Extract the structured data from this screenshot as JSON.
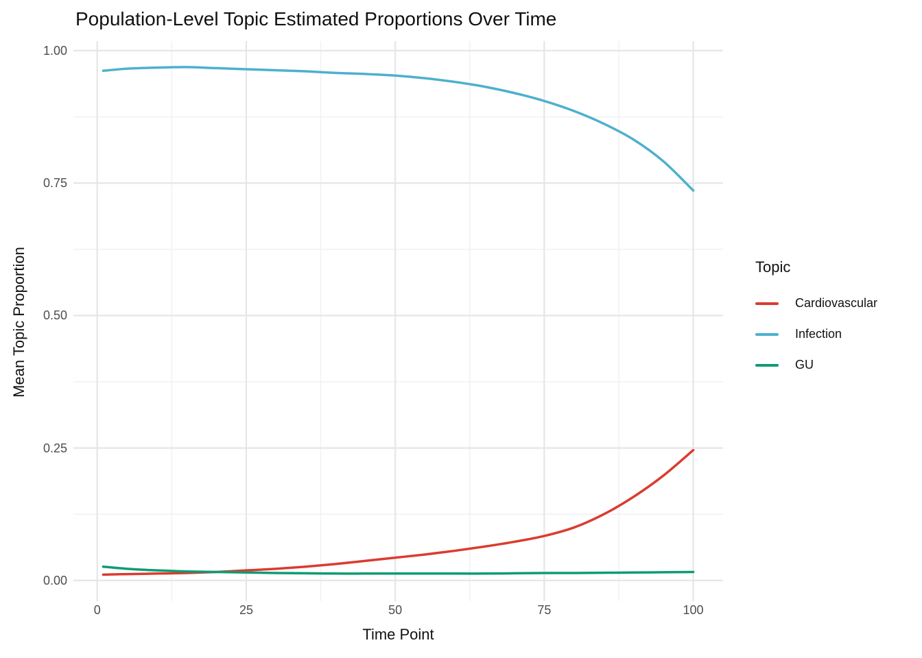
{
  "chart_data": {
    "type": "line",
    "title": "Population-Level Topic Estimated Proportions Over Time",
    "xlabel": "Time Point",
    "ylabel": "Mean Topic Proportion",
    "legend_title": "Topic",
    "legend_position": "right",
    "grid": "major+minor",
    "background_color": "#FFFFFF",
    "major_grid_color": "#E6E6E6",
    "minor_grid_color": "#F0F0F0",
    "tick_label_color": "#4D4D4D",
    "xlim": [
      -4,
      105
    ],
    "ylim": [
      -0.039,
      1.018
    ],
    "x_tick_values": [
      0,
      25,
      50,
      75,
      100
    ],
    "x_tick_labels": [
      "0",
      "25",
      "50",
      "75",
      "100"
    ],
    "x_minor_ticks": [
      12.5,
      37.5,
      62.5,
      87.5
    ],
    "y_tick_values": [
      0,
      0.25,
      0.5,
      0.75,
      1.0
    ],
    "y_tick_labels": [
      "0.00",
      "0.25",
      "0.50",
      "0.75",
      "1.00"
    ],
    "y_minor_ticks": [
      0.125,
      0.375,
      0.625,
      0.875
    ],
    "x": [
      1,
      5,
      10,
      15,
      20,
      25,
      30,
      35,
      40,
      45,
      50,
      55,
      60,
      65,
      70,
      75,
      80,
      85,
      90,
      95,
      100
    ],
    "series": [
      {
        "name": "Cardiovascular",
        "color": "#DB3B2F",
        "values": [
          0.011,
          0.012,
          0.013,
          0.014,
          0.016,
          0.019,
          0.022,
          0.026,
          0.031,
          0.037,
          0.043,
          0.049,
          0.056,
          0.064,
          0.073,
          0.084,
          0.1,
          0.125,
          0.158,
          0.198,
          0.246
        ]
      },
      {
        "name": "Infection",
        "color": "#4DB0CE",
        "values": [
          0.962,
          0.966,
          0.968,
          0.969,
          0.967,
          0.965,
          0.963,
          0.961,
          0.958,
          0.956,
          0.953,
          0.948,
          0.941,
          0.932,
          0.92,
          0.905,
          0.886,
          0.862,
          0.832,
          0.791,
          0.736
        ]
      },
      {
        "name": "GU",
        "color": "#0F9B73",
        "values": [
          0.026,
          0.022,
          0.019,
          0.017,
          0.016,
          0.015,
          0.014,
          0.0135,
          0.013,
          0.013,
          0.013,
          0.013,
          0.013,
          0.013,
          0.0135,
          0.014,
          0.014,
          0.0145,
          0.015,
          0.0155,
          0.016
        ]
      }
    ]
  }
}
